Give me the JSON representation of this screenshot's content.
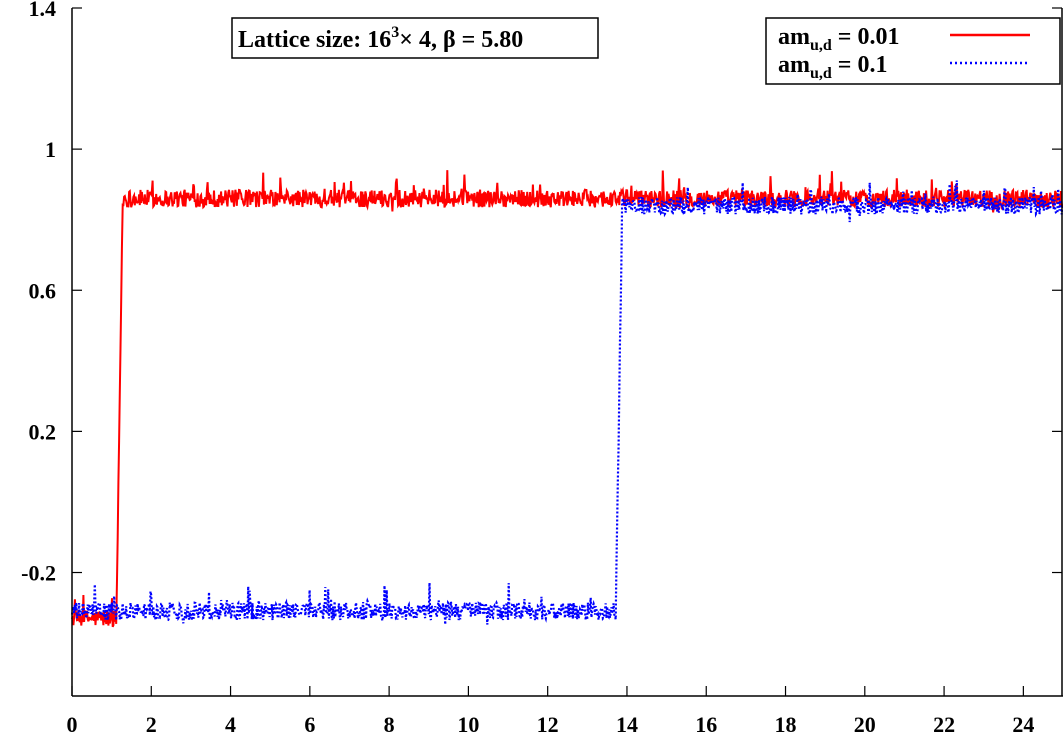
{
  "chart_data": {
    "type": "line",
    "title": "",
    "xlabel": "",
    "ylabel": "",
    "xlim": [
      0,
      25
    ],
    "ylim": [
      -0.55,
      1.4
    ],
    "x_ticks": [
      "0",
      "2",
      "4",
      "6",
      "8",
      "10",
      "12",
      "14",
      "16",
      "18",
      "20",
      "22",
      "24"
    ],
    "x_tick_values": [
      0,
      2,
      4,
      6,
      8,
      10,
      12,
      14,
      16,
      18,
      20,
      22,
      24
    ],
    "y_ticks": [
      "-0.2",
      "0.2",
      "0.6",
      "1",
      "1.4"
    ],
    "y_tick_values": [
      -0.2,
      0.2,
      0.6,
      1.0,
      1.4
    ],
    "annotation": {
      "prefix": "Lattice size: 16",
      "sup": "3",
      "suffix": "× 4, β = 5.80"
    },
    "legend_position": "top-right",
    "series": [
      {
        "legend_base": "am",
        "legend_sub": "u,d",
        "legend_value": " = 0.01",
        "style": "solid",
        "color": "#ff0000",
        "transition_x": 1.2,
        "low_level": -0.33,
        "high_level": 0.86,
        "noise": 0.025,
        "x": [
          0,
          0.1,
          0.2,
          0.3,
          0.4,
          0.5,
          0.6,
          0.7,
          0.8,
          0.9,
          1.0,
          1.1,
          1.15,
          1.2,
          1.25,
          1.3,
          2,
          4,
          6,
          8,
          10,
          12,
          13.8,
          14,
          16,
          18,
          20,
          22,
          24,
          25
        ],
        "y": [
          -0.33,
          -0.3,
          -0.25,
          -0.35,
          -0.3,
          -0.33,
          -0.36,
          -0.31,
          -0.3,
          -0.28,
          -0.25,
          -0.1,
          0.4,
          0.85,
          0.86,
          0.86,
          0.86,
          0.86,
          0.86,
          0.86,
          0.86,
          0.86,
          0.86,
          0.86,
          0.86,
          0.86,
          0.86,
          0.86,
          0.86,
          0.86
        ]
      },
      {
        "legend_base": "am",
        "legend_sub": "u,d",
        "legend_value": " = 0.1",
        "style": "dotted",
        "color": "#0000ff",
        "transition_x": 13.8,
        "low_level": -0.31,
        "high_level": 0.84,
        "noise": 0.025,
        "x": [
          0,
          0.5,
          1,
          2,
          4,
          6,
          8,
          10,
          12,
          13.5,
          13.7,
          13.8,
          13.85,
          13.9,
          14,
          16,
          18,
          20,
          22,
          24,
          25
        ],
        "y": [
          -0.33,
          -0.32,
          -0.3,
          -0.31,
          -0.31,
          -0.31,
          -0.32,
          -0.31,
          -0.32,
          -0.3,
          -0.2,
          0.4,
          0.82,
          0.84,
          0.84,
          0.84,
          0.84,
          0.84,
          0.84,
          0.84,
          0.84
        ]
      }
    ]
  }
}
